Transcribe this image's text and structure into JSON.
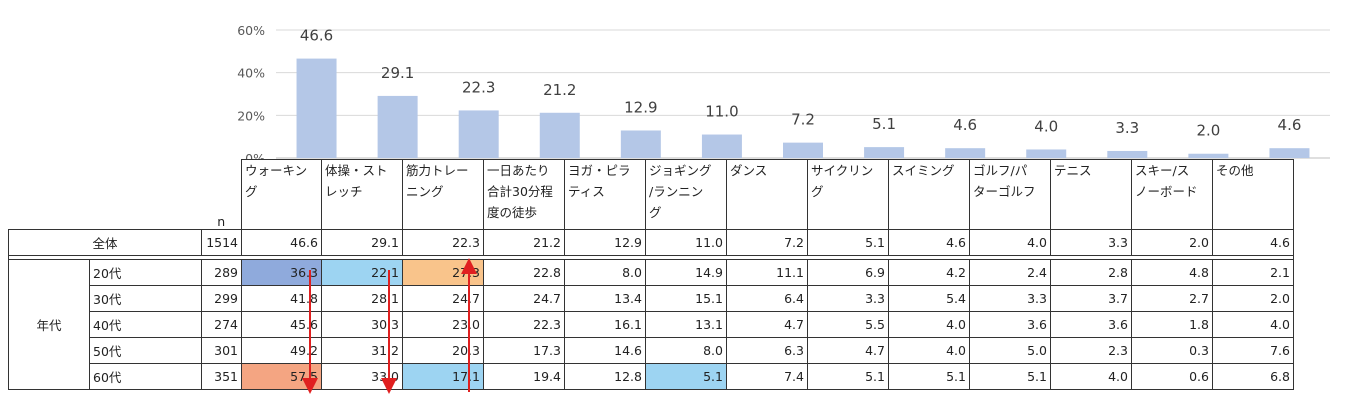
{
  "chart_data": {
    "type": "bar",
    "categories": [
      "ウォーキング",
      "体操・ストレッチ",
      "筋力トレーニング",
      "一日あたり合計30分程度の徒歩",
      "ヨガ・ピラティス",
      "ジョギング/ランニング",
      "ダンス",
      "サイクリング",
      "スイミング",
      "ゴルフ/パターゴルフ",
      "テニス",
      "スキー/スノーボード",
      "その他"
    ],
    "values": [
      46.6,
      29.1,
      22.3,
      21.2,
      12.9,
      11.0,
      7.2,
      5.1,
      4.6,
      4.0,
      3.3,
      2.0,
      4.6
    ],
    "value_labels": [
      "46.6",
      "29.1",
      "22.3",
      "21.2",
      "12.9",
      "11.0",
      "7.2",
      "5.1",
      "4.6",
      "4.0",
      "3.3",
      "2.0",
      "4.6"
    ],
    "yticks": [
      "0%",
      "20%",
      "40%",
      "60%"
    ],
    "ylim": [
      0,
      60
    ],
    "bar_color": "#b4c7e7",
    "gridlines": true
  },
  "table": {
    "header_lines": [
      [
        "ウォーキン",
        "グ"
      ],
      [
        "体操・スト",
        "レッチ"
      ],
      [
        "筋力トレー",
        "ニング"
      ],
      [
        "一日あたり",
        "合計30分程",
        "度の徒歩"
      ],
      [
        "ヨガ・ピラ",
        "ティス"
      ],
      [
        "ジョギング",
        "/ランニン",
        "グ"
      ],
      [
        "ダンス"
      ],
      [
        "サイクリン",
        "グ"
      ],
      [
        "スイミング"
      ],
      [
        "ゴルフ/パ",
        "ターゴルフ"
      ],
      [
        "テニス"
      ],
      [
        "スキー/ス",
        "ノーボード"
      ],
      [
        "その他"
      ]
    ],
    "n_label": "n",
    "total": {
      "label": "全体",
      "n": "1514",
      "values": [
        "46.6",
        "29.1",
        "22.3",
        "21.2",
        "12.9",
        "11.0",
        "7.2",
        "5.1",
        "4.6",
        "4.0",
        "3.3",
        "2.0",
        "4.6"
      ]
    },
    "group_label": "年代",
    "rows": [
      {
        "label": "20代",
        "n": "289",
        "values": [
          "36.3",
          "22.1",
          "27.3",
          "22.8",
          "8.0",
          "14.9",
          "11.1",
          "6.9",
          "4.2",
          "2.4",
          "2.8",
          "4.8",
          "2.1"
        ],
        "highlights": {
          "0": "blue-dark",
          "1": "blue",
          "2": "orange"
        }
      },
      {
        "label": "30代",
        "n": "299",
        "values": [
          "41.8",
          "28.1",
          "24.7",
          "24.7",
          "13.4",
          "15.1",
          "6.4",
          "3.3",
          "5.4",
          "3.3",
          "3.7",
          "2.7",
          "2.0"
        ],
        "highlights": {}
      },
      {
        "label": "40代",
        "n": "274",
        "values": [
          "45.6",
          "30.3",
          "23.0",
          "22.3",
          "16.1",
          "13.1",
          "4.7",
          "5.5",
          "4.0",
          "3.6",
          "3.6",
          "1.8",
          "4.0"
        ],
        "highlights": {}
      },
      {
        "label": "50代",
        "n": "301",
        "values": [
          "49.2",
          "31.2",
          "20.3",
          "17.3",
          "14.6",
          "8.0",
          "6.3",
          "4.7",
          "4.0",
          "5.0",
          "2.3",
          "0.3",
          "7.6"
        ],
        "highlights": {}
      },
      {
        "label": "60代",
        "n": "351",
        "values": [
          "57.5",
          "33.0",
          "17.1",
          "19.4",
          "12.8",
          "5.1",
          "7.4",
          "5.1",
          "5.1",
          "5.1",
          "4.0",
          "0.6",
          "6.8"
        ],
        "highlights": {
          "0": "salmon",
          "2": "blue",
          "5": "blue"
        }
      }
    ],
    "arrow_color": "#e02020"
  }
}
